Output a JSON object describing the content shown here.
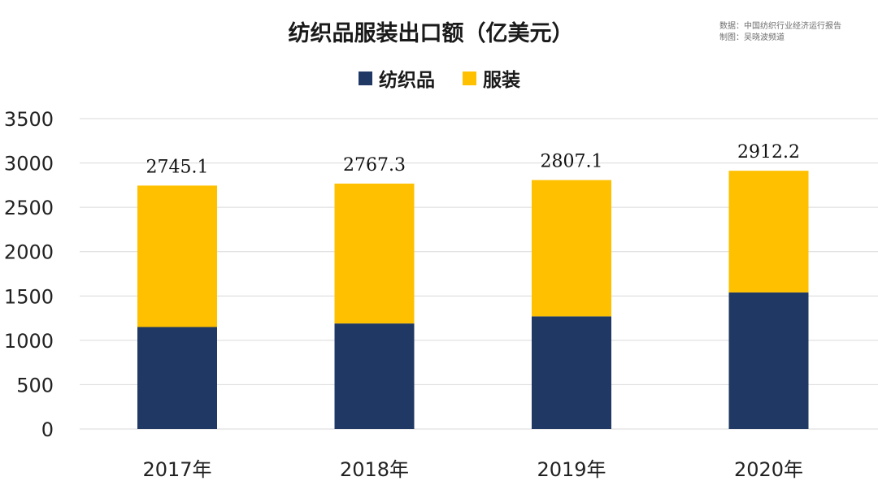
{
  "chart_data": {
    "type": "bar",
    "stacked": true,
    "title": "纺织品服装出口额（亿美元）",
    "source": "数据：中国纺织行业经济运行报告",
    "credit": "制图：吴晓波频道",
    "categories": [
      "2017年",
      "2018年",
      "2019年",
      "2020年"
    ],
    "series": [
      {
        "name": "纺织品",
        "values": [
          1150,
          1190,
          1270,
          1540
        ]
      },
      {
        "name": "服装",
        "values": [
          1595.1,
          1577.3,
          1537.1,
          1372.2
        ]
      }
    ],
    "totals": [
      2745.1,
      2767.3,
      2807.1,
      2912.2
    ],
    "total_labels": [
      "2745.1",
      "2767.3",
      "2807.1",
      "2912.2"
    ],
    "ylim": [
      0,
      3500
    ],
    "yticks": [
      0,
      500,
      1000,
      1500,
      2000,
      2500,
      3000,
      3500
    ],
    "grid": true,
    "legend": "top-center",
    "colors": {
      "纺织品": "#1f3864",
      "服装": "#ffc000"
    }
  }
}
